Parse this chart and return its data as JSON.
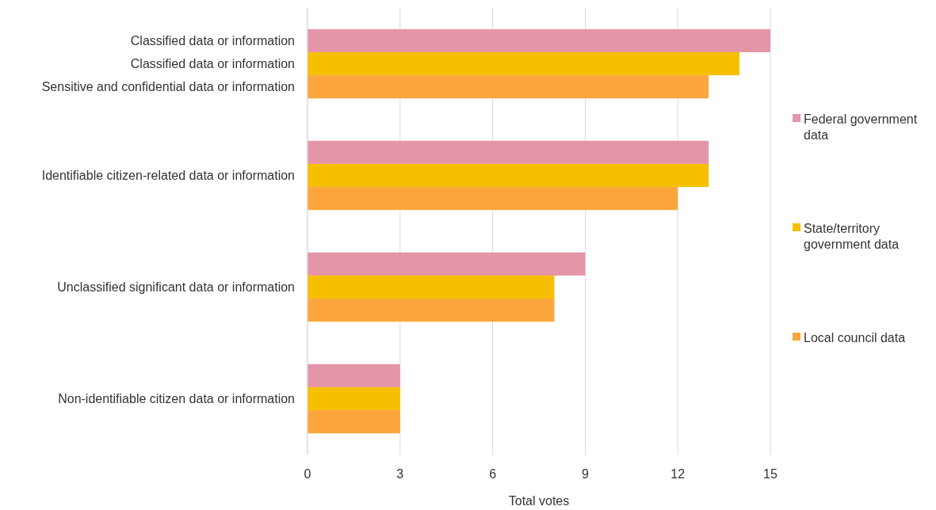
{
  "chart_data": {
    "type": "bar",
    "orientation": "horizontal",
    "xlabel": "Total votes",
    "categories": [
      "Classified data or information\nClassified data or information\nSensitive and confidential data or information",
      "Identifiable citizen-related data or information",
      "Unclassified significant data or information",
      "Non-identifiable citizen data or information"
    ],
    "series": [
      {
        "name": "Federal government data",
        "color": "#e595a8",
        "values": [
          15,
          13,
          9,
          3
        ]
      },
      {
        "name": "State/territory government data",
        "color": "#f5c000",
        "values": [
          14,
          13,
          8,
          3
        ]
      },
      {
        "name": "Local council data",
        "color": "#fba63c",
        "values": [
          13,
          12,
          8,
          3
        ]
      }
    ],
    "xlim": [
      0,
      15
    ],
    "xticks": [
      0,
      3,
      6,
      9,
      12,
      15
    ],
    "grid": "x",
    "legend": "right"
  }
}
